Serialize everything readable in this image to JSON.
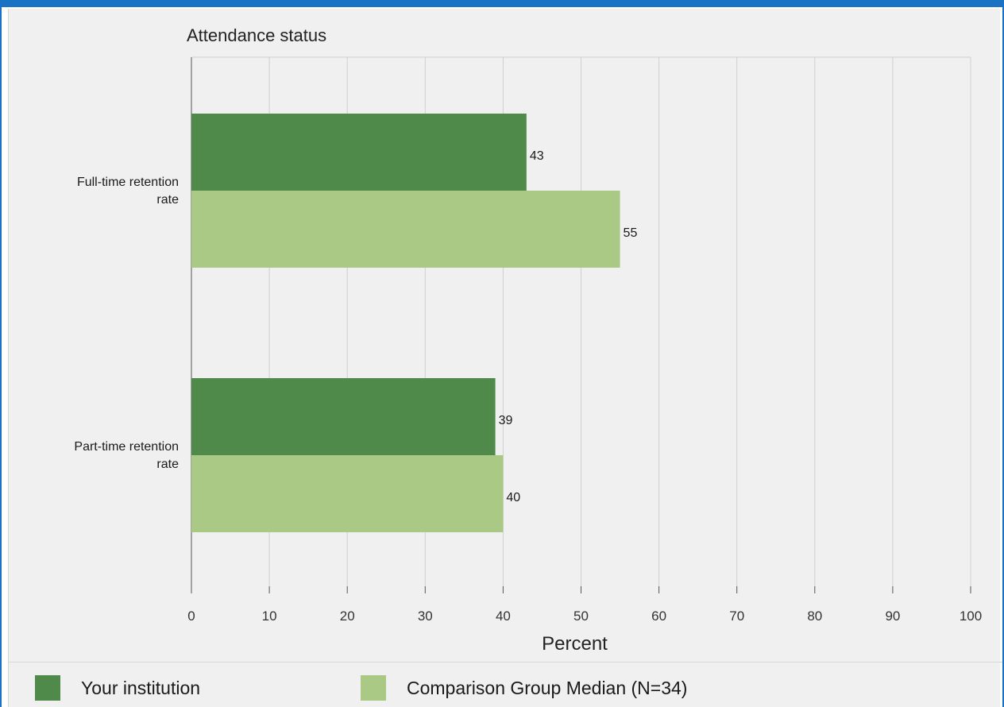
{
  "chart_data": {
    "type": "bar",
    "orientation": "horizontal",
    "title": "Attendance status",
    "xlabel": "Percent",
    "ylabel": "",
    "xlim": [
      0,
      100
    ],
    "x_ticks": [
      0,
      10,
      20,
      30,
      40,
      50,
      60,
      70,
      80,
      90,
      100
    ],
    "grid": true,
    "legend_placement": "bottom",
    "categories": [
      [
        "Full-time retention",
        "rate"
      ],
      [
        "Part-time retention",
        "rate"
      ]
    ],
    "series": [
      {
        "name": "Your institution",
        "color": "#4f8a4b",
        "values": [
          43,
          39
        ]
      },
      {
        "name": "Comparison Group Median (N=34)",
        "color": "#a9c985",
        "values": [
          55,
          40
        ]
      }
    ]
  }
}
